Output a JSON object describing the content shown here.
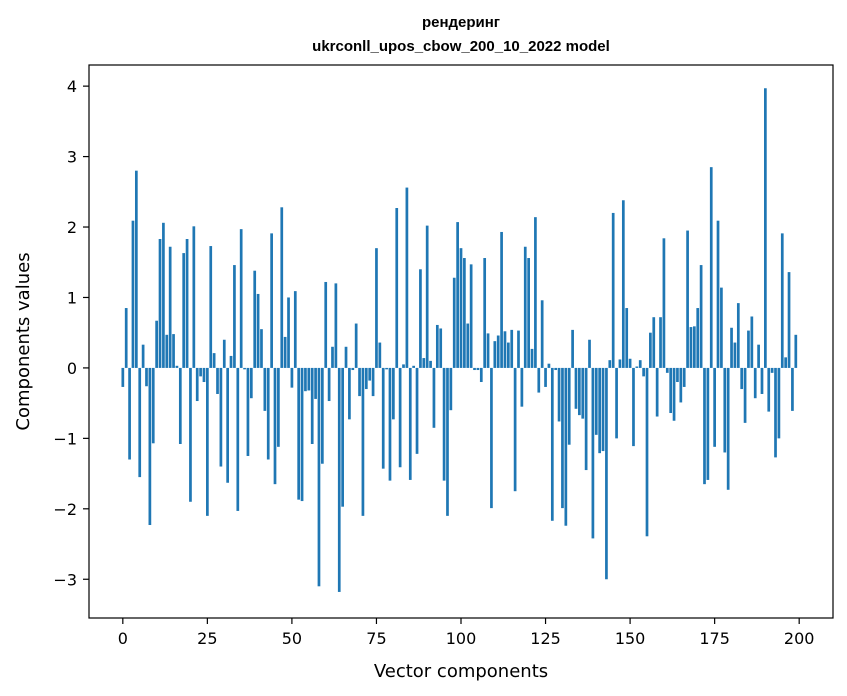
{
  "chart_data": {
    "type": "bar",
    "title_line1": "рендеринг",
    "title_line2": "ukrconll_upos_cbow_200_10_2022 model",
    "xlabel": "Vector components",
    "ylabel": "Components values",
    "xlim": [
      -10,
      210
    ],
    "ylim": [
      -3.55,
      4.3
    ],
    "xticks": [
      0,
      25,
      50,
      75,
      100,
      125,
      150,
      175,
      200
    ],
    "yticks": [
      -3,
      -2,
      -1,
      0,
      1,
      2,
      3,
      4
    ],
    "ytick_labels": [
      "−3",
      "−2",
      "−1",
      "0",
      "1",
      "2",
      "3",
      "4"
    ],
    "grid": false,
    "color": "#1f77b4",
    "x_start": 0,
    "values": [
      -0.27,
      0.85,
      -1.3,
      2.09,
      2.8,
      -1.55,
      0.33,
      -0.26,
      -2.23,
      -1.07,
      0.67,
      1.83,
      2.06,
      0.47,
      1.72,
      0.48,
      0.03,
      -1.08,
      1.63,
      1.83,
      -1.9,
      2.01,
      -0.47,
      -0.12,
      -0.2,
      -2.1,
      1.73,
      0.21,
      -0.37,
      -1.4,
      0.4,
      -1.63,
      0.17,
      1.46,
      -2.03,
      1.97,
      -0.02,
      -1.25,
      -0.43,
      1.38,
      1.05,
      0.55,
      -0.61,
      -1.3,
      1.91,
      -1.65,
      -1.12,
      2.28,
      0.44,
      1.0,
      -0.28,
      1.09,
      -1.87,
      -1.89,
      -0.33,
      -0.32,
      -1.08,
      -0.44,
      -3.1,
      -1.36,
      1.22,
      -0.47,
      0.3,
      1.2,
      -3.18,
      -1.97,
      0.3,
      -0.73,
      -0.03,
      0.63,
      -0.4,
      -2.1,
      -0.3,
      -0.18,
      -0.4,
      1.7,
      0.36,
      -1.43,
      -0.02,
      -1.6,
      -0.73,
      2.27,
      -1.41,
      0.05,
      2.56,
      -1.59,
      0.03,
      -1.22,
      1.4,
      0.14,
      2.02,
      0.1,
      -0.85,
      0.61,
      0.56,
      -1.6,
      -2.1,
      -0.6,
      1.28,
      2.07,
      1.7,
      1.56,
      0.63,
      1.47,
      -0.03,
      -0.03,
      -0.2,
      1.56,
      0.49,
      -1.99,
      0.38,
      0.46,
      1.93,
      0.52,
      0.36,
      0.54,
      -1.75,
      0.53,
      -0.55,
      1.72,
      1.56,
      0.27,
      2.14,
      -0.35,
      0.96,
      -0.27,
      0.06,
      -2.17,
      -0.03,
      -0.76,
      -1.99,
      -2.24,
      -1.09,
      0.54,
      -0.58,
      -0.67,
      -0.72,
      -1.45,
      0.4,
      -2.42,
      -0.95,
      -1.21,
      -1.18,
      -3.0,
      0.11,
      2.2,
      -1.0,
      0.12,
      2.38,
      0.85,
      0.13,
      -1.11,
      0.02,
      0.11,
      -0.12,
      -2.39,
      0.5,
      0.72,
      -0.69,
      0.72,
      1.84,
      -0.07,
      -0.64,
      -0.75,
      -0.2,
      -0.49,
      -0.27,
      1.95,
      0.58,
      0.59,
      0.85,
      1.46,
      -1.65,
      -1.59,
      2.85,
      -1.12,
      2.09,
      1.14,
      -1.2,
      -1.73,
      0.57,
      0.36,
      0.92,
      -0.3,
      -0.78,
      0.53,
      0.73,
      -0.43,
      0.33,
      -0.37,
      3.97,
      -0.62,
      -0.07,
      -1.27,
      -1.0,
      1.91,
      0.15,
      1.36,
      -0.61,
      0.47
    ]
  }
}
